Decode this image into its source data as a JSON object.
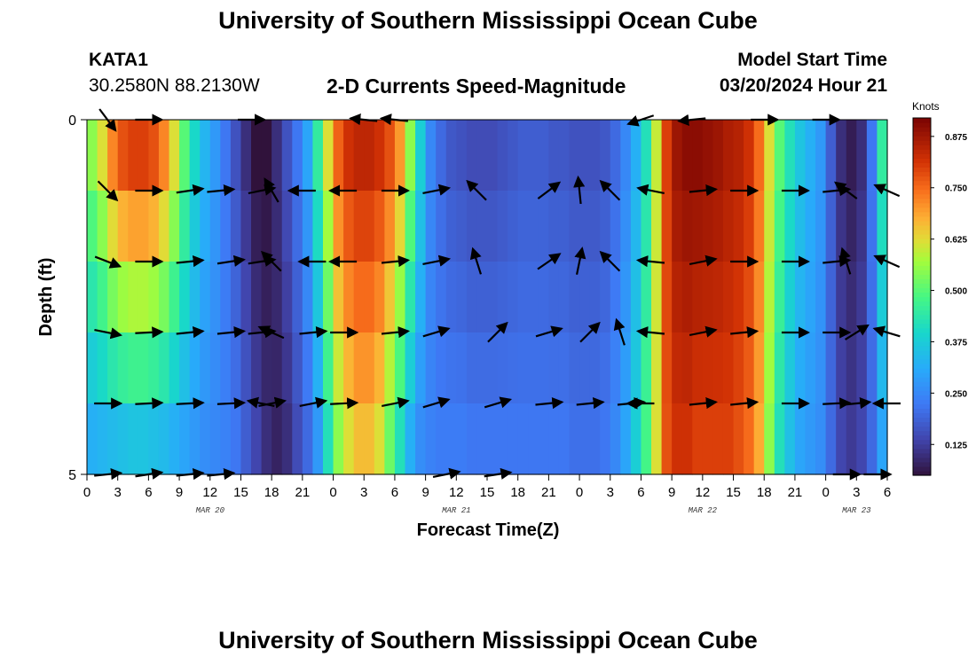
{
  "header": {
    "title": "University of Southern Mississippi Ocean Cube",
    "station_id": "KATA1",
    "coordinates": "30.2580N  88.2130W",
    "plot_title": "2-D Currents Speed-Magnitude",
    "model_label": "Model Start Time",
    "model_time": "03/20/2024 Hour 21"
  },
  "footer": {
    "title": "University of Southern Mississippi Ocean Cube"
  },
  "chart_data": {
    "type": "heatmap",
    "title": "2-D Currents Speed-Magnitude",
    "xlabel": "Forecast Time(Z)",
    "ylabel": "Depth (ft)",
    "x_ticks": [
      "0",
      "3",
      "6",
      "9",
      "12",
      "15",
      "18",
      "21",
      "0",
      "3",
      "6",
      "9",
      "12",
      "15",
      "18",
      "21",
      "0",
      "3",
      "6",
      "9",
      "12",
      "15",
      "18",
      "21",
      "0",
      "3",
      "6"
    ],
    "x_range_hours": [
      0,
      78
    ],
    "day_labels": [
      {
        "label": "MAR 20",
        "hour": 12
      },
      {
        "label": "MAR 21",
        "hour": 36
      },
      {
        "label": "MAR 22",
        "hour": 60
      },
      {
        "label": "MAR 23",
        "hour": 75
      }
    ],
    "y_ticks": [
      "0",
      "5"
    ],
    "ylim": [
      0,
      5
    ],
    "colorbar": {
      "unit": "Knots",
      "min": 0.05,
      "max": 0.92,
      "ticks": [
        "0.125",
        "0.250",
        "0.375",
        "0.500",
        "0.625",
        "0.750",
        "0.875"
      ],
      "tick_values": [
        0.125,
        0.25,
        0.375,
        0.5,
        0.625,
        0.75,
        0.875
      ]
    },
    "speed_profile_hours": [
      0,
      1,
      2,
      3,
      4,
      5,
      6,
      7,
      8,
      9,
      10,
      11,
      12,
      13,
      14,
      15,
      16,
      17,
      18,
      19,
      20,
      21,
      22,
      23,
      24,
      25,
      26,
      27,
      28,
      29,
      30,
      31,
      32,
      33,
      34,
      35,
      36,
      37,
      38,
      39,
      40,
      41,
      42,
      43,
      44,
      45,
      46,
      47,
      48,
      49,
      50,
      51,
      52,
      53,
      54,
      55,
      56,
      57,
      58,
      59,
      60,
      61,
      62,
      63,
      64,
      65,
      66,
      67,
      68,
      69,
      70,
      71,
      72,
      73,
      74,
      75,
      76,
      77,
      78
    ],
    "speed_profile_top": [
      0.55,
      0.62,
      0.72,
      0.78,
      0.8,
      0.8,
      0.78,
      0.72,
      0.62,
      0.5,
      0.4,
      0.33,
      0.28,
      0.22,
      0.16,
      0.1,
      0.05,
      0.05,
      0.1,
      0.16,
      0.22,
      0.3,
      0.45,
      0.62,
      0.76,
      0.82,
      0.84,
      0.84,
      0.82,
      0.78,
      0.7,
      0.55,
      0.38,
      0.25,
      0.2,
      0.17,
      0.16,
      0.15,
      0.15,
      0.15,
      0.16,
      0.17,
      0.18,
      0.18,
      0.18,
      0.17,
      0.17,
      0.16,
      0.16,
      0.16,
      0.17,
      0.2,
      0.25,
      0.32,
      0.42,
      0.6,
      0.8,
      0.88,
      0.9,
      0.9,
      0.89,
      0.88,
      0.86,
      0.85,
      0.82,
      0.75,
      0.62,
      0.5,
      0.42,
      0.36,
      0.32,
      0.28,
      0.18,
      0.1,
      0.07,
      0.1,
      0.22,
      0.45,
      0.6
    ],
    "speed_profile_bottom": [
      0.32,
      0.33,
      0.34,
      0.35,
      0.36,
      0.36,
      0.35,
      0.34,
      0.32,
      0.3,
      0.28,
      0.26,
      0.25,
      0.24,
      0.22,
      0.18,
      0.14,
      0.1,
      0.08,
      0.1,
      0.15,
      0.2,
      0.28,
      0.42,
      0.55,
      0.62,
      0.66,
      0.66,
      0.62,
      0.52,
      0.42,
      0.32,
      0.26,
      0.24,
      0.23,
      0.23,
      0.23,
      0.22,
      0.22,
      0.22,
      0.22,
      0.22,
      0.22,
      0.22,
      0.22,
      0.22,
      0.22,
      0.21,
      0.21,
      0.21,
      0.22,
      0.25,
      0.3,
      0.38,
      0.48,
      0.62,
      0.78,
      0.82,
      0.82,
      0.8,
      0.8,
      0.8,
      0.8,
      0.78,
      0.75,
      0.68,
      0.55,
      0.42,
      0.35,
      0.3,
      0.28,
      0.26,
      0.2,
      0.14,
      0.12,
      0.14,
      0.2,
      0.3,
      0.35
    ],
    "depth_rows": 5,
    "vectors": [
      {
        "hour": 2,
        "depth": 0,
        "u": 0.6,
        "v": -0.8
      },
      {
        "hour": 6,
        "depth": 0,
        "u": 1,
        "v": 0
      },
      {
        "hour": 16,
        "depth": 0,
        "u": 1,
        "v": 0
      },
      {
        "hour": 27,
        "depth": 0,
        "u": -1,
        "v": 0.1
      },
      {
        "hour": 30,
        "depth": 0,
        "u": -1,
        "v": 0.1
      },
      {
        "hour": 54,
        "depth": 0,
        "u": -0.9,
        "v": -0.3
      },
      {
        "hour": 59,
        "depth": 0,
        "u": -1,
        "v": -0.1
      },
      {
        "hour": 66,
        "depth": 0,
        "u": 1,
        "v": 0
      },
      {
        "hour": 72,
        "depth": 0,
        "u": 1,
        "v": 0
      },
      {
        "hour": 2,
        "depth": 1,
        "u": 0.7,
        "v": -0.7
      },
      {
        "hour": 6,
        "depth": 1,
        "u": 1,
        "v": 0
      },
      {
        "hour": 10,
        "depth": 1,
        "u": 1,
        "v": 0.15
      },
      {
        "hour": 13,
        "depth": 1,
        "u": 1,
        "v": 0.1
      },
      {
        "hour": 17,
        "depth": 1,
        "u": 1,
        "v": 0.2
      },
      {
        "hour": 18,
        "depth": 1,
        "u": -0.5,
        "v": 0.86
      },
      {
        "hour": 21,
        "depth": 1,
        "u": -1,
        "v": 0
      },
      {
        "hour": 25,
        "depth": 1,
        "u": -1,
        "v": 0
      },
      {
        "hour": 30,
        "depth": 1,
        "u": 1,
        "v": 0
      },
      {
        "hour": 34,
        "depth": 1,
        "u": 1,
        "v": 0.2
      },
      {
        "hour": 38,
        "depth": 1,
        "u": -0.7,
        "v": 0.7
      },
      {
        "hour": 45,
        "depth": 1,
        "u": 0.8,
        "v": 0.6
      },
      {
        "hour": 48,
        "depth": 1,
        "u": -0.1,
        "v": 1
      },
      {
        "hour": 51,
        "depth": 1,
        "u": -0.7,
        "v": 0.7
      },
      {
        "hour": 55,
        "depth": 1,
        "u": -1,
        "v": 0.2
      },
      {
        "hour": 60,
        "depth": 1,
        "u": 1,
        "v": 0.1
      },
      {
        "hour": 64,
        "depth": 1,
        "u": 1,
        "v": 0
      },
      {
        "hour": 69,
        "depth": 1,
        "u": 1,
        "v": 0
      },
      {
        "hour": 73,
        "depth": 1,
        "u": 1,
        "v": 0.1
      },
      {
        "hour": 74,
        "depth": 1,
        "u": -0.8,
        "v": 0.6
      },
      {
        "hour": 78,
        "depth": 1,
        "u": -0.9,
        "v": 0.4
      },
      {
        "hour": 2,
        "depth": 2,
        "u": 0.9,
        "v": -0.35
      },
      {
        "hour": 6,
        "depth": 2,
        "u": 1,
        "v": 0
      },
      {
        "hour": 10,
        "depth": 2,
        "u": 1,
        "v": 0.1
      },
      {
        "hour": 14,
        "depth": 2,
        "u": 1,
        "v": 0.15
      },
      {
        "hour": 17,
        "depth": 2,
        "u": 1,
        "v": 0.15
      },
      {
        "hour": 18,
        "depth": 2,
        "u": -0.7,
        "v": 0.7
      },
      {
        "hour": 22,
        "depth": 2,
        "u": -1,
        "v": 0
      },
      {
        "hour": 25,
        "depth": 2,
        "u": -1,
        "v": 0
      },
      {
        "hour": 30,
        "depth": 2,
        "u": 1,
        "v": 0.1
      },
      {
        "hour": 34,
        "depth": 2,
        "u": 1,
        "v": 0.2
      },
      {
        "hour": 38,
        "depth": 2,
        "u": -0.3,
        "v": 0.95
      },
      {
        "hour": 45,
        "depth": 2,
        "u": 0.8,
        "v": 0.55
      },
      {
        "hour": 48,
        "depth": 2,
        "u": 0.2,
        "v": 0.98
      },
      {
        "hour": 51,
        "depth": 2,
        "u": -0.7,
        "v": 0.7
      },
      {
        "hour": 55,
        "depth": 2,
        "u": -1,
        "v": 0.1
      },
      {
        "hour": 60,
        "depth": 2,
        "u": 1,
        "v": 0.2
      },
      {
        "hour": 64,
        "depth": 2,
        "u": 1,
        "v": 0
      },
      {
        "hour": 69,
        "depth": 2,
        "u": 1,
        "v": 0
      },
      {
        "hour": 73,
        "depth": 2,
        "u": 1,
        "v": 0.1
      },
      {
        "hour": 74,
        "depth": 2,
        "u": -0.3,
        "v": 0.95
      },
      {
        "hour": 78,
        "depth": 2,
        "u": -0.9,
        "v": 0.4
      },
      {
        "hour": 2,
        "depth": 3,
        "u": 1,
        "v": -0.2
      },
      {
        "hour": 6,
        "depth": 3,
        "u": 1,
        "v": 0.05
      },
      {
        "hour": 10,
        "depth": 3,
        "u": 1,
        "v": 0.1
      },
      {
        "hour": 14,
        "depth": 3,
        "u": 1,
        "v": 0.1
      },
      {
        "hour": 17,
        "depth": 3,
        "u": 1,
        "v": 0.1
      },
      {
        "hour": 18,
        "depth": 3,
        "u": -0.9,
        "v": 0.4
      },
      {
        "hour": 22,
        "depth": 3,
        "u": 1,
        "v": 0.1
      },
      {
        "hour": 25,
        "depth": 3,
        "u": 1,
        "v": 0
      },
      {
        "hour": 30,
        "depth": 3,
        "u": 1,
        "v": 0.1
      },
      {
        "hour": 34,
        "depth": 3,
        "u": 1,
        "v": 0.3
      },
      {
        "hour": 40,
        "depth": 3,
        "u": 0.7,
        "v": 0.7
      },
      {
        "hour": 45,
        "depth": 3,
        "u": 1,
        "v": 0.3
      },
      {
        "hour": 49,
        "depth": 3,
        "u": 0.7,
        "v": 0.7
      },
      {
        "hour": 52,
        "depth": 3,
        "u": -0.3,
        "v": 0.95
      },
      {
        "hour": 55,
        "depth": 3,
        "u": -1,
        "v": 0.1
      },
      {
        "hour": 60,
        "depth": 3,
        "u": 1,
        "v": 0.2
      },
      {
        "hour": 64,
        "depth": 3,
        "u": 1,
        "v": 0.1
      },
      {
        "hour": 69,
        "depth": 3,
        "u": 1,
        "v": 0
      },
      {
        "hour": 73,
        "depth": 3,
        "u": 1,
        "v": 0
      },
      {
        "hour": 75,
        "depth": 3,
        "u": 0.8,
        "v": 0.5
      },
      {
        "hour": 78,
        "depth": 3,
        "u": -1,
        "v": 0.3
      },
      {
        "hour": 2,
        "depth": 4,
        "u": 1,
        "v": 0
      },
      {
        "hour": 6,
        "depth": 4,
        "u": 1,
        "v": 0.05
      },
      {
        "hour": 10,
        "depth": 4,
        "u": 1,
        "v": 0.05
      },
      {
        "hour": 14,
        "depth": 4,
        "u": 1,
        "v": 0.05
      },
      {
        "hour": 17,
        "depth": 4,
        "u": -1,
        "v": 0.2
      },
      {
        "hour": 18,
        "depth": 4,
        "u": 1,
        "v": 0.2
      },
      {
        "hour": 22,
        "depth": 4,
        "u": 1,
        "v": 0.2
      },
      {
        "hour": 25,
        "depth": 4,
        "u": 1,
        "v": 0.05
      },
      {
        "hour": 30,
        "depth": 4,
        "u": 1,
        "v": 0.2
      },
      {
        "hour": 34,
        "depth": 4,
        "u": 1,
        "v": 0.3
      },
      {
        "hour": 40,
        "depth": 4,
        "u": 1,
        "v": 0.3
      },
      {
        "hour": 45,
        "depth": 4,
        "u": 1,
        "v": 0.1
      },
      {
        "hour": 49,
        "depth": 4,
        "u": 1,
        "v": 0.1
      },
      {
        "hour": 53,
        "depth": 4,
        "u": 1,
        "v": 0.1
      },
      {
        "hour": 54,
        "depth": 4,
        "u": -1,
        "v": 0
      },
      {
        "hour": 60,
        "depth": 4,
        "u": 1,
        "v": 0.1
      },
      {
        "hour": 64,
        "depth": 4,
        "u": 1,
        "v": 0.1
      },
      {
        "hour": 69,
        "depth": 4,
        "u": 1,
        "v": 0
      },
      {
        "hour": 73,
        "depth": 4,
        "u": 1,
        "v": 0.05
      },
      {
        "hour": 75,
        "depth": 4,
        "u": 1,
        "v": 0.1
      },
      {
        "hour": 78,
        "depth": 4,
        "u": -1,
        "v": 0
      },
      {
        "hour": 2,
        "depth": 5,
        "u": 1,
        "v": 0.1
      },
      {
        "hour": 6,
        "depth": 5,
        "u": 1,
        "v": 0.15
      },
      {
        "hour": 10,
        "depth": 5,
        "u": 1,
        "v": 0.1
      },
      {
        "hour": 13,
        "depth": 5,
        "u": 1,
        "v": 0.1
      },
      {
        "hour": 35,
        "depth": 5,
        "u": 1,
        "v": 0.2
      },
      {
        "hour": 40,
        "depth": 5,
        "u": 1,
        "v": 0.15
      },
      {
        "hour": 74,
        "depth": 5,
        "u": 1,
        "v": 0
      },
      {
        "hour": 77,
        "depth": 5,
        "u": 1,
        "v": 0
      }
    ]
  }
}
